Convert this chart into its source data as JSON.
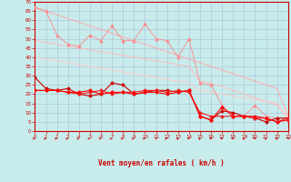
{
  "xlabel": "Vent moyen/en rafales ( km/h )",
  "xlim": [
    0,
    23
  ],
  "ylim": [
    0,
    70
  ],
  "yticks": [
    0,
    5,
    10,
    15,
    20,
    25,
    30,
    35,
    40,
    45,
    50,
    55,
    60,
    65,
    70
  ],
  "xticks": [
    0,
    1,
    2,
    3,
    4,
    5,
    6,
    7,
    8,
    9,
    10,
    11,
    12,
    13,
    14,
    15,
    16,
    17,
    18,
    19,
    20,
    21,
    22,
    23
  ],
  "bg_color": "#c8ecec",
  "grid_color": "#b0c8d8",
  "light_pink1": {
    "color": "#ffaaaa",
    "x": [
      0,
      1,
      2,
      3,
      4,
      5,
      6,
      7,
      8,
      9,
      10,
      11,
      12,
      13,
      14,
      15,
      16,
      17,
      18,
      19,
      20,
      21,
      22,
      23
    ],
    "y": [
      67,
      65,
      63,
      61,
      59,
      57,
      55,
      53,
      51,
      49,
      47,
      45,
      43,
      41,
      39,
      37,
      35,
      33,
      31,
      29,
      27,
      25,
      23,
      8
    ]
  },
  "light_pink2": {
    "color": "#ffbbbb",
    "x": [
      0,
      1,
      2,
      3,
      4,
      5,
      6,
      7,
      8,
      9,
      10,
      11,
      12,
      13,
      14,
      15,
      16,
      17,
      18,
      19,
      20,
      21,
      22,
      23
    ],
    "y": [
      49,
      48,
      47,
      46,
      45,
      44,
      43,
      42,
      41,
      40,
      39,
      38,
      37,
      36,
      35,
      27,
      26,
      24,
      22,
      20,
      18,
      16,
      14,
      7
    ]
  },
  "light_pink3": {
    "color": "#ffcccc",
    "x": [
      0,
      1,
      2,
      3,
      4,
      5,
      6,
      7,
      8,
      9,
      10,
      11,
      12,
      13,
      14,
      15,
      16,
      17,
      18,
      19,
      20,
      21,
      22,
      23
    ],
    "y": [
      40,
      39,
      38,
      37,
      36,
      35,
      34,
      33,
      32,
      31,
      30,
      29,
      28,
      27,
      26,
      22,
      21,
      20,
      19,
      18,
      17,
      16,
      15,
      7
    ]
  },
  "series_pink": {
    "color": "#ff8888",
    "x": [
      0,
      1,
      2,
      3,
      4,
      5,
      6,
      7,
      8,
      9,
      10,
      11,
      12,
      13,
      14,
      15,
      16,
      17,
      18,
      19,
      20,
      21,
      22,
      23
    ],
    "y": [
      67,
      65,
      52,
      47,
      46,
      52,
      49,
      57,
      49,
      49,
      58,
      50,
      49,
      40,
      50,
      26,
      25,
      14,
      8,
      8,
      14,
      8,
      7,
      7
    ]
  },
  "series_red1": {
    "color": "#cc0000",
    "x": [
      0,
      1,
      2,
      3,
      4,
      5,
      6,
      7,
      8,
      9,
      10,
      11,
      12,
      13,
      14,
      15,
      16,
      17,
      18,
      19,
      20,
      21,
      22,
      23
    ],
    "y": [
      29,
      23,
      22,
      23,
      20,
      19,
      20,
      26,
      25,
      20,
      21,
      22,
      22,
      21,
      22,
      8,
      6,
      11,
      10,
      8,
      7,
      5,
      7,
      7
    ]
  },
  "series_red2": {
    "color": "#ee2222",
    "x": [
      0,
      1,
      2,
      3,
      4,
      5,
      6,
      7,
      8,
      9,
      10,
      11,
      12,
      13,
      14,
      15,
      16,
      17,
      18,
      19,
      20,
      21,
      22,
      23
    ],
    "y": [
      22,
      22,
      22,
      21,
      20,
      21,
      22,
      20,
      21,
      21,
      22,
      22,
      21,
      22,
      21,
      10,
      8,
      8,
      8,
      8,
      7,
      7,
      5,
      7
    ]
  },
  "series_red3": {
    "color": "#ff0000",
    "x": [
      0,
      1,
      2,
      3,
      4,
      5,
      6,
      7,
      8,
      9,
      10,
      11,
      12,
      13,
      14,
      15,
      16,
      17,
      18,
      19,
      20,
      21,
      22,
      23
    ],
    "y": [
      22,
      22,
      22,
      21,
      21,
      22,
      20,
      21,
      21,
      20,
      21,
      21,
      20,
      21,
      22,
      8,
      6,
      13,
      8,
      8,
      8,
      7,
      5,
      6
    ]
  },
  "wind_arrows_angles": [
    45,
    45,
    45,
    45,
    45,
    45,
    45,
    45,
    45,
    45,
    45,
    20,
    45,
    10,
    90,
    10,
    90,
    90,
    90,
    10,
    90,
    10,
    10,
    270
  ],
  "axis_color": "#cc0000",
  "tick_fontsize": 4,
  "xlabel_fontsize": 5.5
}
